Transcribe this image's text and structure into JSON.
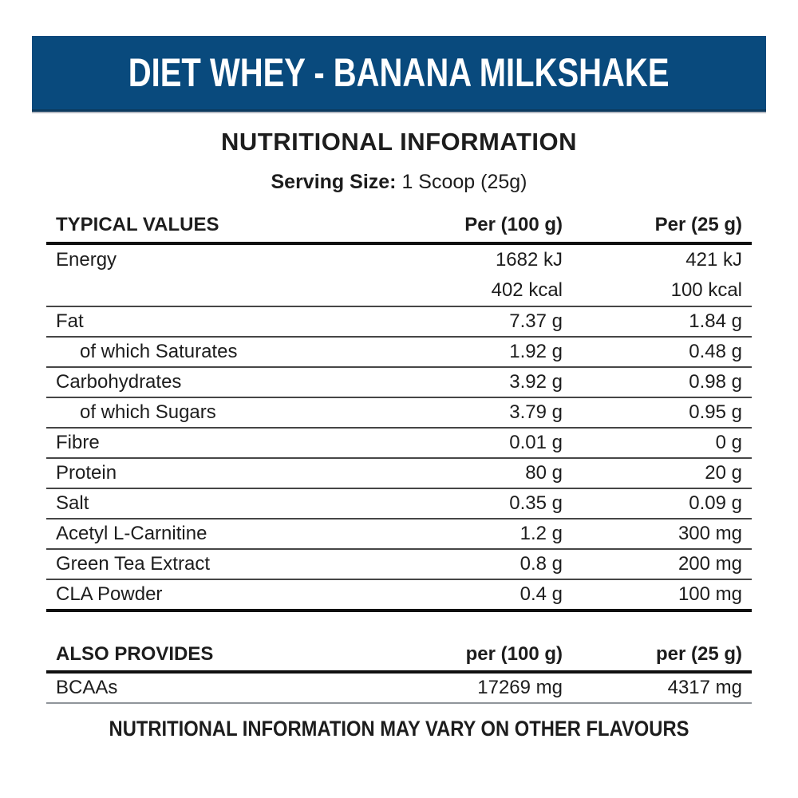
{
  "banner": {
    "title": "DIET WHEY - BANANA MILKSHAKE"
  },
  "intro": {
    "heading": "NUTRITIONAL INFORMATION",
    "serving_label": "Serving Size:",
    "serving_value": "1 Scoop (25g)"
  },
  "typical_values": {
    "col_label": "TYPICAL VALUES",
    "col_per100": "Per (100 g)",
    "col_per25": "Per (25 g)",
    "rows": [
      {
        "label": "Energy",
        "per100": "1682 kJ",
        "per25": "421 kJ"
      },
      {
        "label": "",
        "per100": "402 kcal",
        "per25": "100 kcal"
      },
      {
        "label": "Fat",
        "per100": "7.37 g",
        "per25": "1.84 g"
      },
      {
        "label": "of which Saturates",
        "per100": "1.92 g",
        "per25": "0.48 g"
      },
      {
        "label": "Carbohydrates",
        "per100": "3.92 g",
        "per25": "0.98 g"
      },
      {
        "label": "of which Sugars",
        "per100": "3.79 g",
        "per25": "0.95 g"
      },
      {
        "label": "Fibre",
        "per100": "0.01 g",
        "per25": "0 g"
      },
      {
        "label": "Protein",
        "per100": "80 g",
        "per25": "20 g"
      },
      {
        "label": "Salt",
        "per100": "0.35 g",
        "per25": "0.09 g"
      },
      {
        "label": "Acetyl L-Carnitine",
        "per100": "1.2 g",
        "per25": "300 mg"
      },
      {
        "label": "Green Tea Extract",
        "per100": "0.8 g",
        "per25": "200 mg"
      },
      {
        "label": "CLA Powder",
        "per100": "0.4 g",
        "per25": "100 mg"
      }
    ]
  },
  "also_provides": {
    "col_label": "ALSO PROVIDES",
    "col_per100": "per (100 g)",
    "col_per25": "per (25 g)",
    "rows": [
      {
        "label": "BCAAs",
        "per100": "17269 mg",
        "per25": "4317 mg"
      }
    ]
  },
  "footer": {
    "note": "NUTRITIONAL INFORMATION MAY VARY ON OTHER FLAVOURS"
  },
  "colors": {
    "banner_bg": "#094a7d",
    "banner_text": "#ffffff",
    "text": "#1d1d1d"
  }
}
